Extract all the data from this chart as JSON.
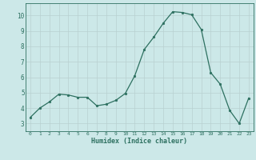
{
  "x": [
    0,
    1,
    2,
    3,
    4,
    5,
    6,
    7,
    8,
    9,
    10,
    11,
    12,
    13,
    14,
    15,
    16,
    17,
    18,
    19,
    20,
    21,
    22,
    23
  ],
  "y": [
    3.4,
    4.0,
    4.4,
    4.9,
    4.85,
    4.7,
    4.7,
    4.15,
    4.25,
    4.5,
    4.95,
    6.1,
    7.8,
    8.6,
    9.5,
    10.25,
    10.2,
    10.05,
    9.1,
    6.3,
    5.55,
    3.85,
    3.0,
    4.65
  ],
  "line_color": "#2d7060",
  "marker_color": "#2d7060",
  "bg_color": "#cce8e8",
  "grid_color": "#b8d0d0",
  "xlabel": "Humidex (Indice chaleur)",
  "ylim": [
    2.5,
    10.8
  ],
  "xlim": [
    -0.5,
    23.5
  ],
  "yticks": [
    3,
    4,
    5,
    6,
    7,
    8,
    9,
    10
  ],
  "xticks": [
    0,
    1,
    2,
    3,
    4,
    5,
    6,
    7,
    8,
    9,
    10,
    11,
    12,
    13,
    14,
    15,
    16,
    17,
    18,
    19,
    20,
    21,
    22,
    23
  ],
  "tick_label_color": "#2d7060",
  "spine_color": "#2d7060",
  "xlabel_color": "#2d7060"
}
